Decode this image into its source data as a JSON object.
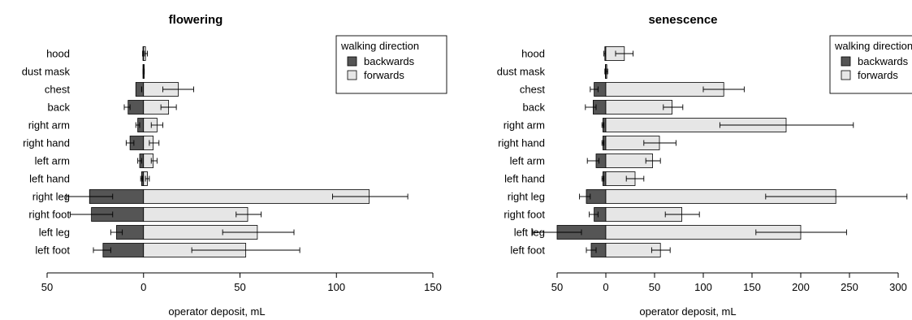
{
  "chart_data": [
    {
      "type": "bar",
      "orientation": "horizontal",
      "layout": "back-to-back (backwards plotted leftward from 0, forwards rightward)",
      "title": "flowering",
      "xlabel": "operator deposit,  mL",
      "categories": [
        "hood",
        "dust mask",
        "chest",
        "back",
        "right arm",
        "right hand",
        "left arm",
        "left hand",
        "right leg",
        "right foot",
        "left leg",
        "left foot"
      ],
      "xlim": [
        -50,
        150
      ],
      "ticks": [
        -50,
        0,
        50,
        100,
        150
      ],
      "tick_labels": [
        "50",
        "0",
        "50",
        "100",
        "150"
      ],
      "legend": {
        "title": "walking direction",
        "position": "top-right"
      },
      "series": [
        {
          "name": "backwards",
          "color": "#555555",
          "values": [
            0.3,
            0.3,
            4,
            8,
            3,
            7,
            2,
            1,
            28,
            27,
            14,
            21
          ],
          "error": [
            [
              0.3,
              0.5
            ],
            [
              0.2,
              0.2
            ],
            [
              1,
              1
            ],
            [
              7,
              10
            ],
            [
              2,
              4
            ],
            [
              5,
              9
            ],
            [
              1,
              3
            ],
            [
              0.5,
              1.5
            ],
            [
              16,
              40
            ],
            [
              16,
              38
            ],
            [
              11,
              17
            ],
            [
              17,
              26
            ]
          ]
        },
        {
          "name": "forwards",
          "color": "#e6e6e6",
          "values": [
            1,
            0.3,
            18,
            13,
            7,
            5,
            5,
            2,
            117,
            54,
            59,
            53
          ],
          "error": [
            [
              0.5,
              2
            ],
            [
              0.2,
              0.4
            ],
            [
              10,
              26
            ],
            [
              9,
              17
            ],
            [
              4,
              10
            ],
            [
              3,
              8
            ],
            [
              4,
              7
            ],
            [
              1,
              3
            ],
            [
              98,
              137
            ],
            [
              48,
              61
            ],
            [
              41,
              78
            ],
            [
              25,
              81
            ]
          ]
        }
      ]
    },
    {
      "type": "bar",
      "orientation": "horizontal",
      "layout": "back-to-back (backwards plotted leftward from 0, forwards rightward)",
      "title": "senescence",
      "xlabel": "operator deposit,  mL",
      "categories": [
        "hood",
        "dust mask",
        "chest",
        "back",
        "right arm",
        "right hand",
        "left arm",
        "left hand",
        "right leg",
        "right foot",
        "left leg",
        "left foot"
      ],
      "xlim": [
        -50,
        300
      ],
      "ticks": [
        -50,
        0,
        50,
        100,
        150,
        200,
        250,
        300
      ],
      "tick_labels": [
        "50",
        "0",
        "50",
        "100",
        "150",
        "200",
        "250",
        "300"
      ],
      "legend": {
        "title": "walking direction",
        "position": "top-right"
      },
      "series": [
        {
          "name": "backwards",
          "color": "#555555",
          "values": [
            1,
            0.5,
            12,
            13,
            3,
            3,
            10,
            3,
            20,
            12,
            50,
            15
          ],
          "error": [
            [
              0.5,
              2
            ],
            [
              0.3,
              1
            ],
            [
              8,
              16
            ],
            [
              10,
              21
            ],
            [
              2,
              4
            ],
            [
              2,
              4
            ],
            [
              7,
              19
            ],
            [
              2,
              4
            ],
            [
              16,
              27
            ],
            [
              8,
              17
            ],
            [
              25,
              75
            ],
            [
              10,
              20
            ]
          ]
        },
        {
          "name": "forwards",
          "color": "#e6e6e6",
          "values": [
            19,
            1,
            121,
            68,
            185,
            55,
            48,
            30,
            236,
            78,
            200,
            56
          ],
          "error": [
            [
              10,
              28
            ],
            [
              0.5,
              2
            ],
            [
              100,
              142
            ],
            [
              59,
              79
            ],
            [
              117,
              254
            ],
            [
              39,
              72
            ],
            [
              41,
              56
            ],
            [
              21,
              39
            ],
            [
              164,
              309
            ],
            [
              61,
              96
            ],
            [
              154,
              247
            ],
            [
              47,
              66
            ]
          ]
        }
      ]
    }
  ]
}
